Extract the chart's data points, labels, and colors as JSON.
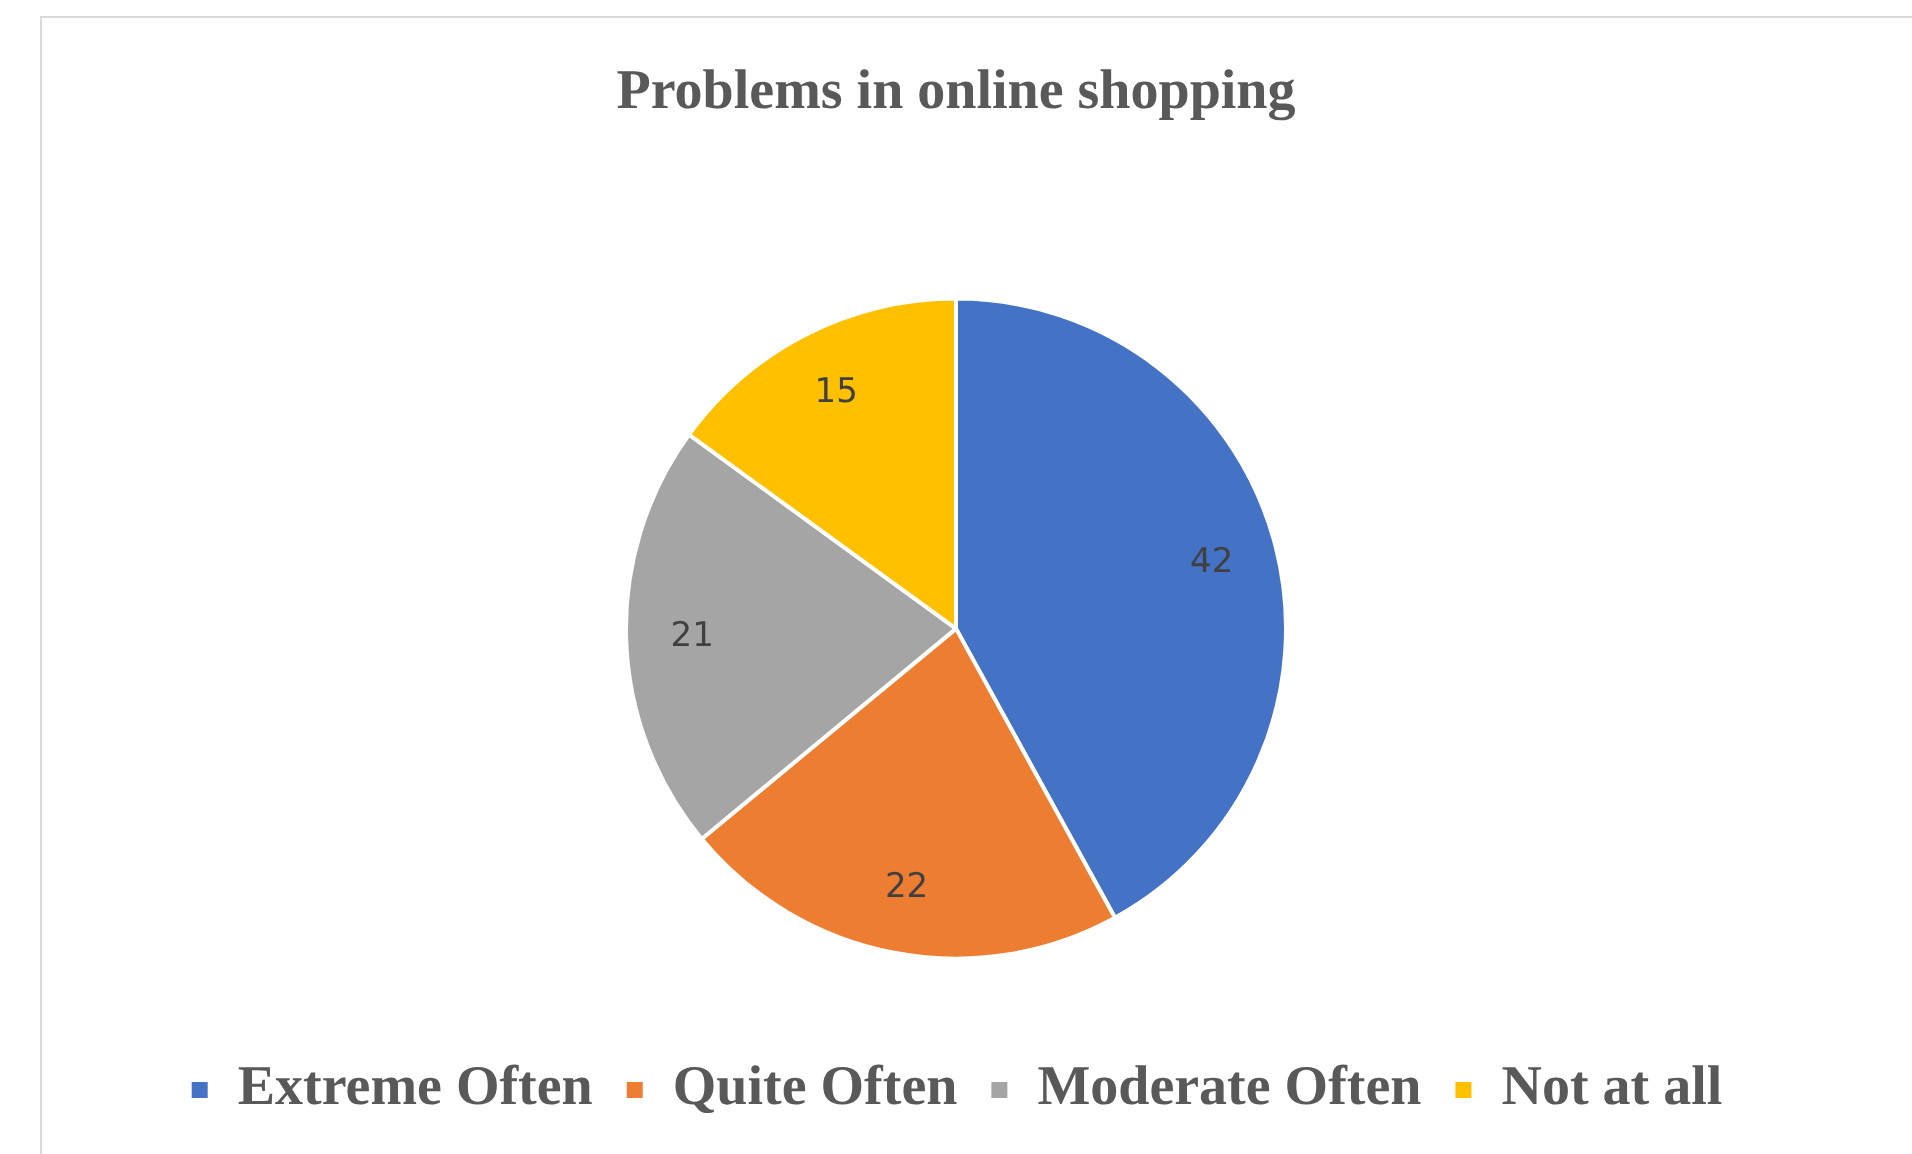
{
  "chart_data": {
    "type": "pie",
    "title": "Problems in online shopping",
    "categories": [
      "Extreme Often",
      "Quite Often",
      "Moderate Often",
      "Not at all"
    ],
    "values": [
      42,
      22,
      21,
      15
    ],
    "colors": [
      "#4472c4",
      "#ed7d31",
      "#a5a5a5",
      "#ffc000"
    ],
    "data_labels": true,
    "legend": "bottom"
  }
}
